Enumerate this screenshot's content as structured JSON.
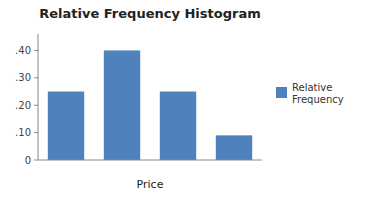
{
  "chart_data": {
    "type": "bar",
    "title": "Relative Frequency Histogram",
    "x_label": "Price",
    "categories": [
      null,
      null,
      null,
      null
    ],
    "series": [
      {
        "name": "Relative\nFrequency",
        "color": "#4f81bd",
        "values": [
          0.25,
          0.4,
          0.25,
          0.09
        ]
      }
    ],
    "ylim": [
      0,
      0.46
    ],
    "yticks": [
      0,
      {
        "value": 0.1,
        "label": ".10"
      },
      {
        "value": 0.2,
        "label": ".20"
      },
      {
        "value": 0.3,
        "label": ".30"
      },
      {
        "value": 0.4,
        "label": ".40"
      }
    ],
    "grid": false,
    "legend": "right"
  }
}
